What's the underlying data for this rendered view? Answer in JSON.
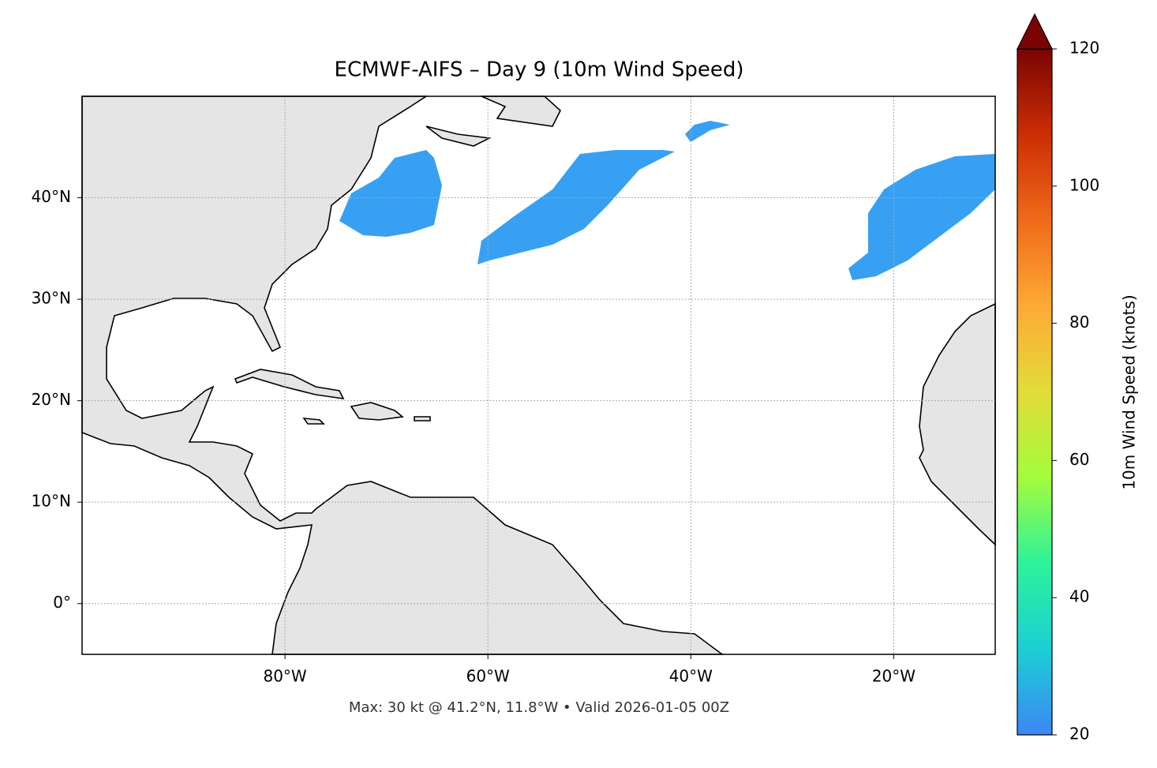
{
  "title": "ECMWF-AIFS – Day 9 (10m Wind Speed)",
  "footnote": "Max: 30 kt @ 41.2°N, 11.8°W • Valid 2026-01-05 00Z",
  "map": {
    "xlim": [
      -100,
      -10
    ],
    "ylim": [
      -5,
      50
    ],
    "xticks": [
      {
        "value": -80,
        "label": "80°W"
      },
      {
        "value": -60,
        "label": "60°W"
      },
      {
        "value": -40,
        "label": "40°W"
      },
      {
        "value": -20,
        "label": "20°W"
      }
    ],
    "yticks": [
      {
        "value": 0,
        "label": "0°"
      },
      {
        "value": 10,
        "label": "10°N"
      },
      {
        "value": 20,
        "label": "20°N"
      },
      {
        "value": 30,
        "label": "30°N"
      },
      {
        "value": 40,
        "label": "40°N"
      }
    ],
    "grid": true
  },
  "colorbar": {
    "label": "10m Wind Speed (knots)",
    "lim": [
      20,
      120
    ],
    "ticks": [
      20,
      40,
      60,
      80,
      100,
      120
    ],
    "colors": [
      "#3d86f5",
      "#1bcfd4",
      "#2df29a",
      "#a4fc3c",
      "#e2dc38",
      "#feaa36",
      "#f06a1a",
      "#cb2e04",
      "#7a0403"
    ]
  }
}
